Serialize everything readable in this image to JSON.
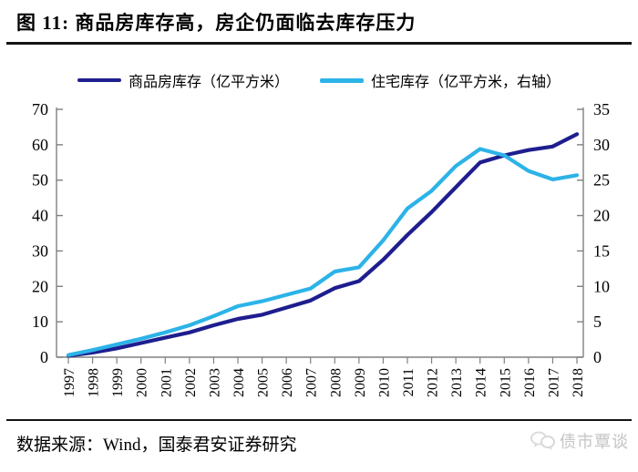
{
  "header": {
    "title": "图 11:  商品房库存高，房企仍面临去库存压力"
  },
  "legend": {
    "items": [
      {
        "label": "商品房库存（亿平方米）",
        "color": "#1E1E8F"
      },
      {
        "label": "住宅库存（亿平方米，右轴）",
        "color": "#2CB3E8"
      }
    ]
  },
  "chart_data": {
    "type": "line",
    "title": "商品房库存高，房企仍面临去库存压力",
    "categories": [
      "1997",
      "1998",
      "1999",
      "2000",
      "2001",
      "2002",
      "2003",
      "2004",
      "2005",
      "2006",
      "2007",
      "2008",
      "2009",
      "2010",
      "2011",
      "2012",
      "2013",
      "2014",
      "2015",
      "2016",
      "2017",
      "2018"
    ],
    "series": [
      {
        "name": "商品房库存（亿平方米）",
        "axis": "left",
        "color": "#1E1E8F",
        "values": [
          0.4,
          1.3,
          2.5,
          4.0,
          5.5,
          7.0,
          9.0,
          10.8,
          12.0,
          14.0,
          16.0,
          19.5,
          21.5,
          27.5,
          34.5,
          41.0,
          48.0,
          55.0,
          57.0,
          58.5,
          59.5,
          63.0
        ]
      },
      {
        "name": "住宅库存（亿平方米，右轴）",
        "axis": "right",
        "color": "#2CB3E8",
        "values": [
          0.3,
          1.0,
          1.8,
          2.6,
          3.5,
          4.5,
          5.8,
          7.2,
          7.9,
          8.8,
          9.7,
          12.1,
          12.7,
          16.5,
          21.0,
          23.5,
          27.0,
          29.4,
          28.5,
          26.3,
          25.1,
          25.7
        ]
      }
    ],
    "left_axis": {
      "min": 0,
      "max": 70,
      "ticks": [
        0,
        10,
        20,
        30,
        40,
        50,
        60,
        70
      ]
    },
    "right_axis": {
      "min": 0,
      "max": 35,
      "ticks": [
        0,
        5,
        10,
        15,
        20,
        25,
        30,
        35
      ]
    },
    "grid": false,
    "legend_position": "top",
    "axis_color": "#808080",
    "label_color": "#000000"
  },
  "footer": {
    "source": "数据来源：Wind，国泰君安证券研究",
    "watermark": "债市覃谈"
  }
}
